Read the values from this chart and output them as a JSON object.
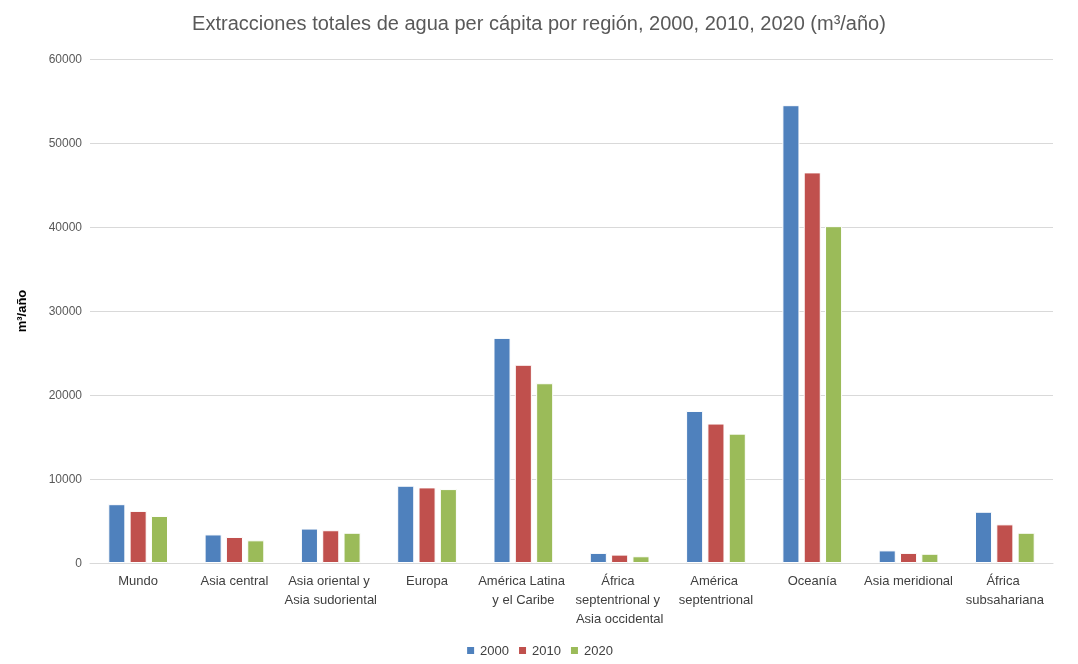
{
  "chart_data": {
    "type": "bar",
    "title": "Extracciones totales de agua per cápita por región, 2000, 2010, 2020 (m³/año)",
    "ylabel": "m³/año",
    "categories": [
      "Mundo",
      "Asia central",
      "Asia oriental y Asia sudoriental",
      "Europa",
      "América Latina y el Caribe",
      "África septentrional y Asia occidental",
      "América septentrional",
      "Oceanía",
      "Asia meridional",
      "África subsahariana"
    ],
    "series": [
      {
        "name": "2000",
        "color": "#4f81bd",
        "values": [
          7000,
          3400,
          4100,
          9200,
          26800,
          1200,
          18100,
          54500,
          1500,
          6100
        ]
      },
      {
        "name": "2010",
        "color": "#c0504d",
        "values": [
          6200,
          3100,
          3900,
          9000,
          23600,
          1000,
          16600,
          46500,
          1200,
          4600
        ]
      },
      {
        "name": "2020",
        "color": "#9bbb59",
        "values": [
          5600,
          2700,
          3600,
          8800,
          21400,
          800,
          15400,
          40100,
          1100,
          3600
        ]
      }
    ],
    "ylim": [
      0,
      60000
    ],
    "yticks": [
      0,
      10000,
      20000,
      30000,
      40000,
      50000,
      60000
    ],
    "grid": "y",
    "legend": "bottom"
  }
}
